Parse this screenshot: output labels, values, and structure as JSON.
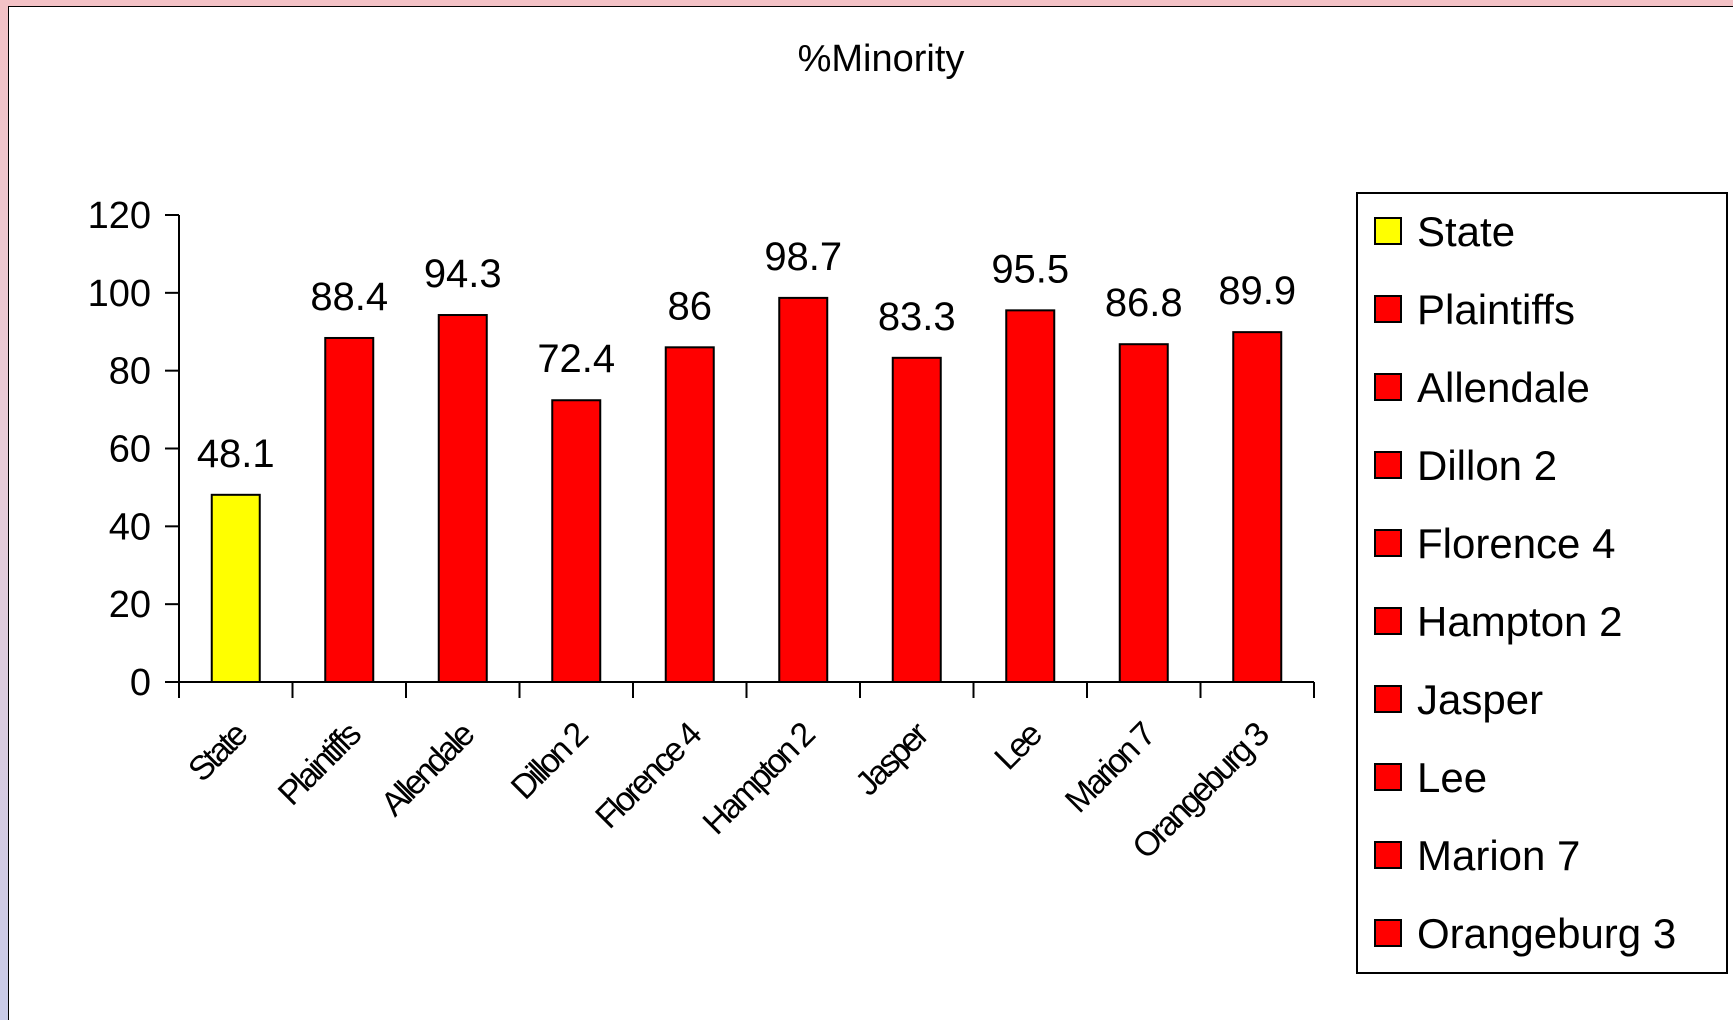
{
  "chart_data": {
    "type": "bar",
    "title": "%Minority",
    "categories": [
      "State",
      "Plaintiffs",
      "Allendale",
      "Dillon 2",
      "Florence 4",
      "Hampton 2",
      "Jasper",
      "Lee",
      "Marion 7",
      "Orangeburg 3"
    ],
    "values": [
      48.1,
      88.4,
      94.3,
      72.4,
      86,
      98.7,
      83.3,
      95.5,
      86.8,
      89.9
    ],
    "data_labels": [
      "48.1",
      "88.4",
      "94.3",
      "72.4",
      "86",
      "98.7",
      "83.3",
      "95.5",
      "86.8",
      "89.9"
    ],
    "colors": [
      "#ffff00",
      "#ff0000",
      "#ff0000",
      "#ff0000",
      "#ff0000",
      "#ff0000",
      "#ff0000",
      "#ff0000",
      "#ff0000",
      "#ff0000"
    ],
    "ylim": [
      0,
      120
    ],
    "yticks": [
      0,
      20,
      40,
      60,
      80,
      100,
      120
    ],
    "grid": false,
    "legend": {
      "placement": "right",
      "entries": [
        "State",
        "Plaintiffs",
        "Allendale",
        "Dillon 2",
        "Florence 4",
        "Hampton 2",
        "Jasper",
        "Lee",
        "Marion 7",
        "Orangeburg 3"
      ]
    }
  }
}
